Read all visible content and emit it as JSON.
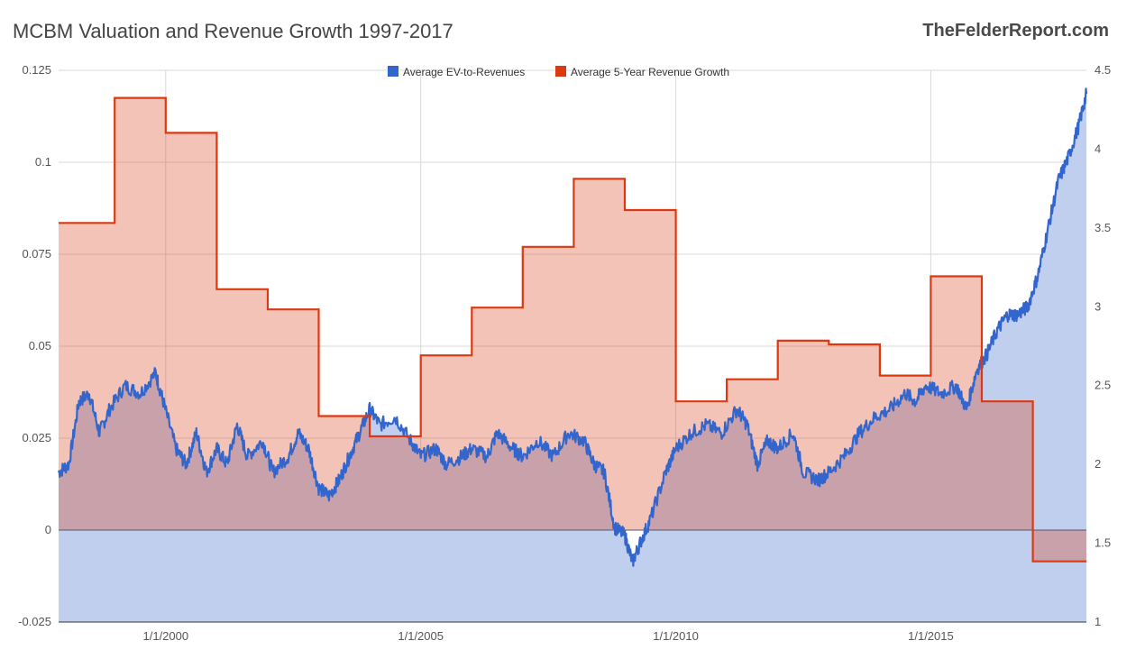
{
  "header": {
    "title": "MCBM Valuation and Revenue Growth 1997-2017",
    "source": "TheFelderReport.com"
  },
  "chart_data": {
    "type": "area",
    "title": "MCBM Valuation and Revenue Growth 1997-2017",
    "legend_position": "top",
    "grid": true,
    "x_range": [
      1997.9,
      2018.05
    ],
    "x_ticks": [
      {
        "value": 2000,
        "label": "1/1/2000"
      },
      {
        "value": 2005,
        "label": "1/1/2005"
      },
      {
        "value": 2010,
        "label": "1/1/2010"
      },
      {
        "value": 2015,
        "label": "1/1/2015"
      }
    ],
    "y_left": {
      "range": [
        -0.025,
        0.125
      ],
      "ticks": [
        {
          "value": -0.025,
          "label": "-0.025"
        },
        {
          "value": 0,
          "label": "0"
        },
        {
          "value": 0.025,
          "label": "0.025"
        },
        {
          "value": 0.05,
          "label": "0.05"
        },
        {
          "value": 0.075,
          "label": "0.075"
        },
        {
          "value": 0.1,
          "label": "0.1"
        },
        {
          "value": 0.125,
          "label": "0.125"
        }
      ]
    },
    "y_right": {
      "range": [
        1,
        4.5
      ],
      "ticks": [
        {
          "value": 1,
          "label": "1"
        },
        {
          "value": 1.5,
          "label": "1.5"
        },
        {
          "value": 2,
          "label": "2"
        },
        {
          "value": 2.5,
          "label": "2.5"
        },
        {
          "value": 3,
          "label": "3"
        },
        {
          "value": 3.5,
          "label": "3.5"
        },
        {
          "value": 4,
          "label": "4"
        },
        {
          "value": 4.5,
          "label": "4.5"
        }
      ]
    },
    "series": [
      {
        "name": "Average EV-to-Revenues",
        "axis": "right",
        "color": "#3366cc",
        "fill": "#c1cfee",
        "points": [
          [
            1997.9,
            1.95
          ],
          [
            1998.1,
            2.0
          ],
          [
            1998.3,
            2.4
          ],
          [
            1998.5,
            2.45
          ],
          [
            1998.7,
            2.2
          ],
          [
            1998.9,
            2.35
          ],
          [
            1999.2,
            2.5
          ],
          [
            1999.5,
            2.45
          ],
          [
            1999.8,
            2.58
          ],
          [
            1999.95,
            2.4
          ],
          [
            2000.2,
            2.1
          ],
          [
            2000.4,
            2.0
          ],
          [
            2000.6,
            2.2
          ],
          [
            2000.8,
            1.95
          ],
          [
            2001.0,
            2.1
          ],
          [
            2001.2,
            2.0
          ],
          [
            2001.4,
            2.25
          ],
          [
            2001.6,
            2.05
          ],
          [
            2001.9,
            2.15
          ],
          [
            2002.1,
            1.95
          ],
          [
            2002.4,
            2.05
          ],
          [
            2002.6,
            2.2
          ],
          [
            2002.8,
            2.1
          ],
          [
            2003.0,
            1.85
          ],
          [
            2003.2,
            1.8
          ],
          [
            2003.4,
            1.9
          ],
          [
            2003.6,
            2.05
          ],
          [
            2003.8,
            2.2
          ],
          [
            2004.0,
            2.35
          ],
          [
            2004.2,
            2.25
          ],
          [
            2004.5,
            2.3
          ],
          [
            2004.8,
            2.15
          ],
          [
            2005.0,
            2.05
          ],
          [
            2005.3,
            2.1
          ],
          [
            2005.5,
            2.0
          ],
          [
            2005.8,
            2.05
          ],
          [
            2006.0,
            2.1
          ],
          [
            2006.3,
            2.05
          ],
          [
            2006.5,
            2.2
          ],
          [
            2006.8,
            2.1
          ],
          [
            2007.0,
            2.05
          ],
          [
            2007.3,
            2.15
          ],
          [
            2007.6,
            2.05
          ],
          [
            2007.9,
            2.2
          ],
          [
            2008.2,
            2.15
          ],
          [
            2008.4,
            2.0
          ],
          [
            2008.6,
            1.95
          ],
          [
            2008.8,
            1.6
          ],
          [
            2009.0,
            1.55
          ],
          [
            2009.15,
            1.38
          ],
          [
            2009.3,
            1.5
          ],
          [
            2009.5,
            1.65
          ],
          [
            2009.8,
            1.95
          ],
          [
            2010.0,
            2.1
          ],
          [
            2010.3,
            2.2
          ],
          [
            2010.6,
            2.25
          ],
          [
            2010.9,
            2.2
          ],
          [
            2011.2,
            2.35
          ],
          [
            2011.4,
            2.25
          ],
          [
            2011.6,
            2.0
          ],
          [
            2011.8,
            2.15
          ],
          [
            2012.0,
            2.1
          ],
          [
            2012.3,
            2.2
          ],
          [
            2012.5,
            1.95
          ],
          [
            2012.8,
            1.9
          ],
          [
            2013.0,
            1.95
          ],
          [
            2013.3,
            2.05
          ],
          [
            2013.6,
            2.2
          ],
          [
            2013.9,
            2.3
          ],
          [
            2014.2,
            2.35
          ],
          [
            2014.5,
            2.45
          ],
          [
            2014.7,
            2.4
          ],
          [
            2014.9,
            2.5
          ],
          [
            2015.2,
            2.45
          ],
          [
            2015.5,
            2.5
          ],
          [
            2015.7,
            2.35
          ],
          [
            2015.9,
            2.6
          ],
          [
            2016.1,
            2.7
          ],
          [
            2016.3,
            2.85
          ],
          [
            2016.5,
            2.95
          ],
          [
            2016.7,
            2.95
          ],
          [
            2016.9,
            3.0
          ],
          [
            2017.1,
            3.2
          ],
          [
            2017.3,
            3.5
          ],
          [
            2017.5,
            3.8
          ],
          [
            2017.7,
            3.95
          ],
          [
            2017.9,
            4.15
          ],
          [
            2018.05,
            4.35
          ]
        ]
      },
      {
        "name": "Average 5-Year Revenue Growth",
        "axis": "left",
        "color": "#dc3912",
        "fill": "#f4c4bc",
        "step_start": 1997.9,
        "step_end": 2018.05,
        "steps": [
          [
            1997.9,
            0.0835
          ],
          [
            1999.0,
            0.1175
          ],
          [
            2000.0,
            0.108
          ],
          [
            2001.0,
            0.0655
          ],
          [
            2002.0,
            0.06
          ],
          [
            2003.0,
            0.031
          ],
          [
            2004.0,
            0.0255
          ],
          [
            2005.0,
            0.0475
          ],
          [
            2006.0,
            0.0605
          ],
          [
            2007.0,
            0.077
          ],
          [
            2008.0,
            0.0955
          ],
          [
            2009.0,
            0.087
          ],
          [
            2010.0,
            0.035
          ],
          [
            2011.0,
            0.041
          ],
          [
            2012.0,
            0.0515
          ],
          [
            2013.0,
            0.0505
          ],
          [
            2014.0,
            0.042
          ],
          [
            2015.0,
            0.069
          ],
          [
            2016.0,
            0.035
          ],
          [
            2017.0,
            -0.0085
          ]
        ]
      }
    ]
  }
}
